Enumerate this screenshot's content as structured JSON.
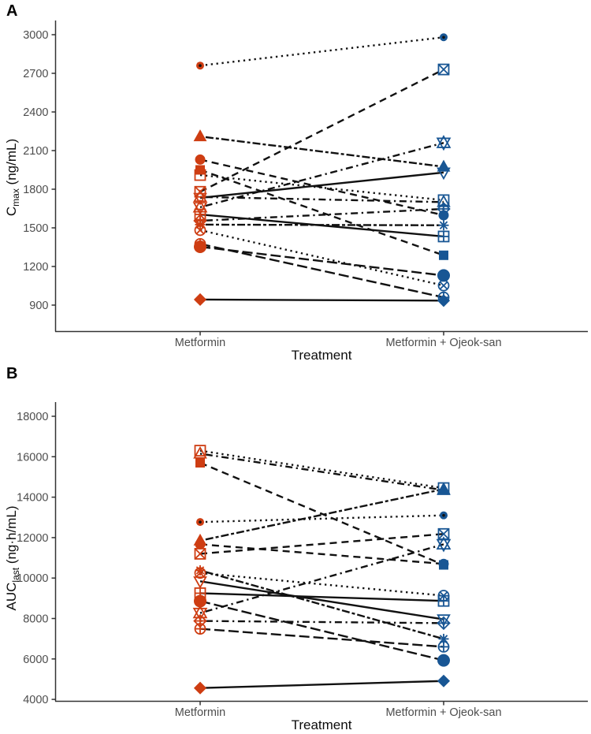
{
  "figure": {
    "panel_labels": [
      "A",
      "B"
    ],
    "colors": {
      "metformin_marker": "#CE3D12",
      "ojeoksan_marker": "#185694",
      "line": "#111111",
      "axis": "#333333",
      "tick_text": "#4d4d4d"
    }
  },
  "chart_data": [
    {
      "type": "line",
      "variant": "paired-slopegraph",
      "panel": "A",
      "xlabel": "Treatment",
      "ylabel": "Cmax (ng/mL)",
      "ylabel_parts": {
        "pre": "C",
        "sub": "max",
        "post": " (ng/mL)"
      },
      "categories": [
        "Metformin",
        "Metformin + Ojeok-san"
      ],
      "yticks": [
        3000,
        2700,
        2400,
        2100,
        1800,
        1500,
        1200,
        900
      ],
      "ylim": [
        800,
        3090
      ],
      "grid": false,
      "legend": "none",
      "series": [
        {
          "id": "S01",
          "shape": "circle-dot",
          "linetype": "dotted",
          "size": 10,
          "values": [
            2760,
            2980
          ]
        },
        {
          "id": "S02",
          "shape": "square-x",
          "linetype": "dashed",
          "size": 13,
          "values": [
            1780,
            2730
          ]
        },
        {
          "id": "S03",
          "shape": "star",
          "linetype": "dotdash",
          "size": 14,
          "values": [
            1660,
            2160
          ]
        },
        {
          "id": "S04",
          "shape": "filled-triangle",
          "linetype": "twodash",
          "size": 15,
          "values": [
            2210,
            1975
          ]
        },
        {
          "id": "S05",
          "shape": "open-triangle-down",
          "linetype": "solid",
          "size": 13,
          "values": [
            1733,
            1930
          ]
        },
        {
          "id": "S06",
          "shape": "open-square",
          "linetype": "dotted",
          "size": 13,
          "values": [
            1910,
            1715
          ]
        },
        {
          "id": "S07",
          "shape": "open-triangle",
          "linetype": "dotdash",
          "size": 13,
          "values": [
            1740,
            1700
          ]
        },
        {
          "id": "S08",
          "shape": "filled-square",
          "linetype": "dashed",
          "size": 12,
          "values": [
            1950,
            1287
          ]
        },
        {
          "id": "S09",
          "shape": "square-plus",
          "linetype": "solid",
          "size": 13,
          "values": [
            1604,
            1433
          ]
        },
        {
          "id": "S10",
          "shape": "diamond-plus",
          "linetype": "dotdash",
          "size": 13,
          "values": [
            1555,
            1647
          ]
        },
        {
          "id": "S11",
          "shape": "asterisk",
          "linetype": "twodash",
          "size": 13,
          "values": [
            1525,
            1520
          ]
        },
        {
          "id": "S12",
          "shape": "circle-x",
          "linetype": "dotted",
          "size": 13,
          "values": [
            1482,
            1052
          ]
        },
        {
          "id": "S13",
          "shape": "circle-plus",
          "linetype": "longdash",
          "size": 13,
          "values": [
            1375,
            960
          ]
        },
        {
          "id": "S14",
          "shape": "filled-circle",
          "linetype": "longdash",
          "size": 16,
          "values": [
            1353,
            1130
          ]
        },
        {
          "id": "S15",
          "shape": "filled-diamond",
          "linetype": "solid",
          "size": 14,
          "values": [
            943,
            935
          ]
        },
        {
          "id": "S16",
          "shape": "filled-circle",
          "linetype": "dashed",
          "size": 13,
          "values": [
            2030,
            1598
          ]
        }
      ]
    },
    {
      "type": "line",
      "variant": "paired-slopegraph",
      "panel": "B",
      "xlabel": "Treatment",
      "ylabel": "AUClast (ng·h/mL)",
      "ylabel_parts": {
        "pre": "AUC",
        "sub": "last",
        "post": " (ng·h/mL)"
      },
      "categories": [
        "Metformin",
        "Metformin + Ojeok-san"
      ],
      "yticks": [
        18000,
        16000,
        14000,
        12000,
        10000,
        8000,
        6000,
        4000
      ],
      "ylim": [
        3900,
        18700
      ],
      "grid": false,
      "legend": "none",
      "series": [
        {
          "id": "S01",
          "shape": "circle-dot",
          "linetype": "dotted",
          "size": 10,
          "values": [
            12770,
            13100
          ]
        },
        {
          "id": "S02",
          "shape": "square-x",
          "linetype": "dashed",
          "size": 13,
          "values": [
            11200,
            12180
          ]
        },
        {
          "id": "S03",
          "shape": "star",
          "linetype": "dotdash",
          "size": 14,
          "values": [
            8270,
            11670
          ]
        },
        {
          "id": "S04",
          "shape": "filled-triangle",
          "linetype": "twodash",
          "size": 15,
          "values": [
            11850,
            14400
          ]
        },
        {
          "id": "S05",
          "shape": "open-triangle-down",
          "linetype": "solid",
          "size": 13,
          "values": [
            9840,
            7960
          ]
        },
        {
          "id": "S06",
          "shape": "open-square",
          "linetype": "dotted",
          "size": 13,
          "values": [
            16300,
            14450
          ]
        },
        {
          "id": "S07",
          "shape": "open-triangle",
          "linetype": "dotdash",
          "size": 13,
          "values": [
            16150,
            14350
          ]
        },
        {
          "id": "S08",
          "shape": "filled-square",
          "linetype": "dashed",
          "size": 12,
          "values": [
            15700,
            10650
          ]
        },
        {
          "id": "S09",
          "shape": "square-plus",
          "linetype": "solid",
          "size": 13,
          "values": [
            9250,
            8870
          ]
        },
        {
          "id": "S10",
          "shape": "diamond-plus",
          "linetype": "dotdash",
          "size": 13,
          "values": [
            7880,
            7770
          ]
        },
        {
          "id": "S11",
          "shape": "asterisk",
          "linetype": "twodash",
          "size": 13,
          "values": [
            10380,
            6990
          ]
        },
        {
          "id": "S12",
          "shape": "circle-x",
          "linetype": "dotted",
          "size": 13,
          "values": [
            10250,
            9130
          ]
        },
        {
          "id": "S13",
          "shape": "circle-plus",
          "linetype": "longdash",
          "size": 13,
          "values": [
            7490,
            6600
          ]
        },
        {
          "id": "S14",
          "shape": "filled-circle",
          "linetype": "longdash",
          "size": 16,
          "values": [
            8860,
            5930
          ]
        },
        {
          "id": "S15",
          "shape": "filled-diamond",
          "linetype": "solid",
          "size": 14,
          "values": [
            4560,
            4910
          ]
        },
        {
          "id": "S16",
          "shape": "filled-circle",
          "linetype": "dashed",
          "size": 13,
          "values": [
            11670,
            10700
          ]
        }
      ]
    }
  ]
}
